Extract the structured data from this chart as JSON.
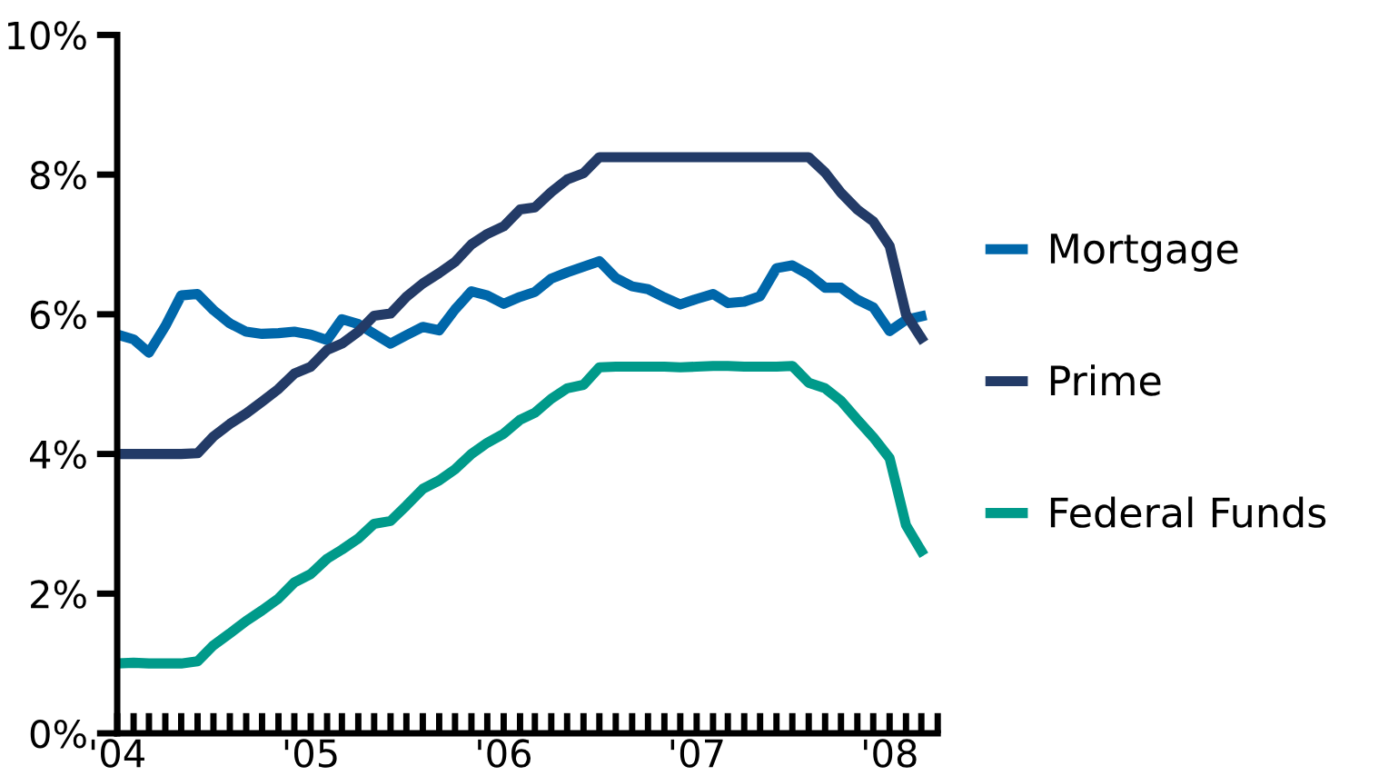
{
  "chart_data": {
    "type": "line",
    "x": [
      "2004-01",
      "2004-02",
      "2004-03",
      "2004-04",
      "2004-05",
      "2004-06",
      "2004-07",
      "2004-08",
      "2004-09",
      "2004-10",
      "2004-11",
      "2004-12",
      "2005-01",
      "2005-02",
      "2005-03",
      "2005-04",
      "2005-05",
      "2005-06",
      "2005-07",
      "2005-08",
      "2005-09",
      "2005-10",
      "2005-11",
      "2005-12",
      "2006-01",
      "2006-02",
      "2006-03",
      "2006-04",
      "2006-05",
      "2006-06",
      "2006-07",
      "2006-08",
      "2006-09",
      "2006-10",
      "2006-11",
      "2006-12",
      "2007-01",
      "2007-02",
      "2007-03",
      "2007-04",
      "2007-05",
      "2007-06",
      "2007-07",
      "2007-08",
      "2007-09",
      "2007-10",
      "2007-11",
      "2007-12",
      "2008-01",
      "2008-02",
      "2008-03"
    ],
    "series": [
      {
        "name": "Mortgage",
        "color": "#0067aa",
        "values": [
          5.71,
          5.64,
          5.45,
          5.83,
          6.27,
          6.29,
          6.06,
          5.87,
          5.75,
          5.72,
          5.73,
          5.75,
          5.71,
          5.63,
          5.93,
          5.86,
          5.72,
          5.58,
          5.7,
          5.82,
          5.77,
          6.07,
          6.33,
          6.27,
          6.15,
          6.25,
          6.32,
          6.51,
          6.6,
          6.68,
          6.76,
          6.52,
          6.4,
          6.36,
          6.24,
          6.14,
          6.22,
          6.29,
          6.16,
          6.18,
          6.26,
          6.66,
          6.7,
          6.57,
          6.38,
          6.38,
          6.21,
          6.1,
          5.76,
          5.92,
          5.97
        ]
      },
      {
        "name": "Prime",
        "color": "#233b67",
        "values": [
          4.0,
          4.0,
          4.0,
          4.0,
          4.0,
          4.01,
          4.25,
          4.43,
          4.58,
          4.75,
          4.93,
          5.15,
          5.25,
          5.49,
          5.58,
          5.75,
          5.98,
          6.01,
          6.25,
          6.44,
          6.59,
          6.75,
          7.0,
          7.15,
          7.26,
          7.5,
          7.53,
          7.75,
          7.93,
          8.02,
          8.25,
          8.25,
          8.25,
          8.25,
          8.25,
          8.25,
          8.25,
          8.25,
          8.25,
          8.25,
          8.25,
          8.25,
          8.25,
          8.25,
          8.03,
          7.74,
          7.5,
          7.33,
          6.98,
          6.0,
          5.66
        ]
      },
      {
        "name": "Federal Funds",
        "color": "#009a8a",
        "values": [
          1.0,
          1.01,
          1.0,
          1.0,
          1.0,
          1.03,
          1.26,
          1.43,
          1.61,
          1.76,
          1.93,
          2.16,
          2.28,
          2.5,
          2.63,
          2.79,
          3.0,
          3.04,
          3.26,
          3.5,
          3.62,
          3.78,
          4.0,
          4.16,
          4.29,
          4.49,
          4.59,
          4.79,
          4.94,
          4.99,
          5.24,
          5.25,
          5.25,
          5.25,
          5.25,
          5.24,
          5.25,
          5.26,
          5.26,
          5.25,
          5.25,
          5.25,
          5.26,
          5.02,
          4.94,
          4.76,
          4.49,
          4.24,
          3.94,
          2.98,
          2.61
        ]
      }
    ],
    "xlim": [
      "2004-01",
      "2008-04"
    ],
    "xticks": [
      {
        "value": "2004-01",
        "label": "'04"
      },
      {
        "value": "2005-01",
        "label": "'05"
      },
      {
        "value": "2006-01",
        "label": "'06"
      },
      {
        "value": "2007-01",
        "label": "'07"
      },
      {
        "value": "2008-01",
        "label": "'08"
      }
    ],
    "ylim": [
      0,
      10
    ],
    "yticks": [
      {
        "value": 0,
        "label": "0%"
      },
      {
        "value": 2,
        "label": "2%"
      },
      {
        "value": 4,
        "label": "4%"
      },
      {
        "value": 6,
        "label": "6%"
      },
      {
        "value": 8,
        "label": "8%"
      },
      {
        "value": 10,
        "label": "10%"
      }
    ],
    "grid": false,
    "legend": "right",
    "marker": "none",
    "line_style": "solid"
  }
}
